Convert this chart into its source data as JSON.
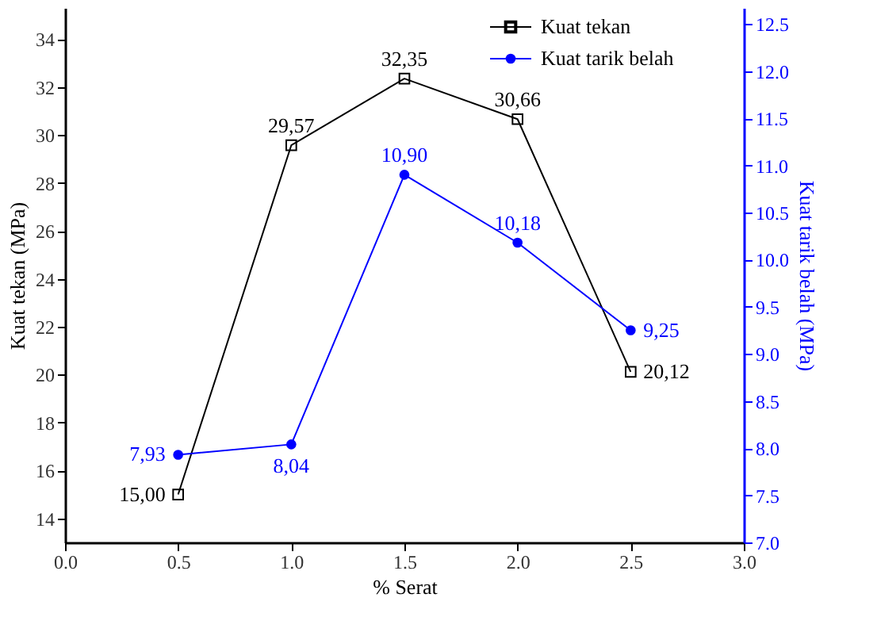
{
  "chart_data": {
    "type": "line",
    "xlabel": "% Serat",
    "ylabel": "Kuat tekan (MPa)",
    "y2label": "Kuat tarik belah (MPa)",
    "x": [
      0.5,
      1.0,
      1.5,
      2.0,
      2.5
    ],
    "series": [
      {
        "name": "Kuat tekan",
        "color": "#000000",
        "marker": "square",
        "values": [
          15.0,
          29.57,
          32.35,
          30.66,
          20.12
        ],
        "value_labels": [
          "15,00",
          "29,57",
          "32,35",
          "30,66",
          "20,12"
        ]
      },
      {
        "name": "Kuat tarik belah",
        "color": "#0000ff",
        "marker": "circle",
        "axis": "y2",
        "values": [
          7.93,
          8.04,
          10.9,
          10.18,
          9.25
        ],
        "value_labels": [
          "7,93",
          "8,04",
          "10,90",
          "10,18",
          "9,25"
        ]
      }
    ],
    "xlim": [
      0.0,
      3.0
    ],
    "xticks": [
      {
        "value": 0,
        "label": "0.0"
      },
      0.5,
      {
        "value": 1,
        "label": "1.0"
      },
      1.5,
      {
        "value": 2,
        "label": "2.0"
      },
      2.5,
      {
        "value": 3,
        "label": "3.0"
      }
    ],
    "ylim": [
      13,
      35.3
    ],
    "yticks": [
      14,
      16,
      18,
      20,
      22,
      24,
      26,
      28,
      30,
      32,
      34
    ],
    "y2lim": [
      7.0,
      12.67
    ],
    "y2ticks": [
      {
        "value": 7,
        "label": "7.0"
      },
      7.5,
      {
        "value": 8,
        "label": "8.0"
      },
      8.5,
      {
        "value": 9,
        "label": "9.0"
      },
      9.5,
      {
        "value": 10,
        "label": "10.0"
      },
      10.5,
      {
        "value": 11,
        "label": "11.0"
      },
      11.5,
      {
        "value": 12,
        "label": "12.0"
      },
      12.5
    ],
    "grid": false,
    "legend": "top right",
    "line_style": "solid"
  }
}
